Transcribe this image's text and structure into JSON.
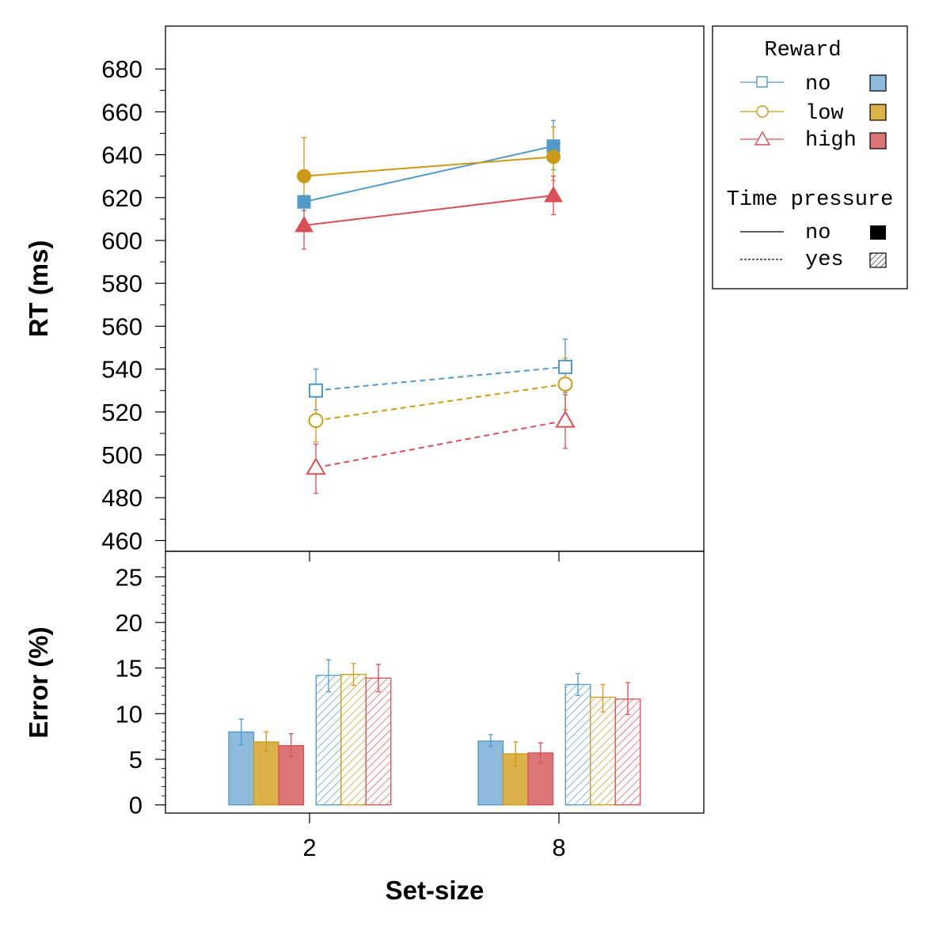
{
  "colors": {
    "no": "#4f9ac8",
    "low": "#cc9a16",
    "high": "#d94f55",
    "no_fill": "#8ebbdc",
    "low_fill": "#dcb149",
    "high_fill": "#dc7575"
  },
  "chart_data": [
    {
      "type": "line",
      "ylabel": "RT (ms)",
      "ylim": [
        455,
        700
      ],
      "yticks": [
        "460",
        "480",
        "500",
        "520",
        "540",
        "560",
        "580",
        "600",
        "620",
        "640",
        "660",
        "680"
      ],
      "categories": [
        "2",
        "8"
      ],
      "series": [
        {
          "name": "no",
          "pressure": "no",
          "values": [
            618,
            644
          ],
          "err": [
            [
              614,
              621
            ],
            [
              633,
              656
            ]
          ]
        },
        {
          "name": "low",
          "pressure": "no",
          "values": [
            630,
            639
          ],
          "err": [
            [
              621,
              648
            ],
            [
              628,
              653
            ]
          ]
        },
        {
          "name": "high",
          "pressure": "no",
          "values": [
            607,
            621
          ],
          "err": [
            [
              596,
              619
            ],
            [
              612,
              630
            ]
          ]
        },
        {
          "name": "no",
          "pressure": "yes",
          "values": [
            530,
            541
          ],
          "err": [
            [
              521,
              540
            ],
            [
              529,
              554
            ]
          ]
        },
        {
          "name": "low",
          "pressure": "yes",
          "values": [
            516,
            533
          ],
          "err": [
            [
              506,
              527
            ],
            [
              521,
              545
            ]
          ]
        },
        {
          "name": "high",
          "pressure": "yes",
          "values": [
            494,
            516
          ],
          "err": [
            [
              482,
              505
            ],
            [
              503,
              528
            ]
          ]
        }
      ]
    },
    {
      "type": "bar",
      "ylabel": "Error (%)",
      "xlabel": "Set-size",
      "ylim": [
        -0.9,
        27.8
      ],
      "yticks": [
        "0",
        "5",
        "10",
        "15",
        "20",
        "25"
      ],
      "categories": [
        "2",
        "8"
      ],
      "series": [
        {
          "name": "no",
          "pressure": "no",
          "values": [
            8.0,
            7.0
          ],
          "err": [
            [
              6.6,
              9.4
            ],
            [
              6.4,
              7.7
            ]
          ]
        },
        {
          "name": "low",
          "pressure": "no",
          "values": [
            6.9,
            5.6
          ],
          "err": [
            [
              5.9,
              8.0
            ],
            [
              4.3,
              6.9
            ]
          ]
        },
        {
          "name": "high",
          "pressure": "no",
          "values": [
            6.5,
            5.7
          ],
          "err": [
            [
              5.3,
              7.8
            ],
            [
              4.6,
              6.8
            ]
          ]
        },
        {
          "name": "no",
          "pressure": "yes",
          "values": [
            14.2,
            13.2
          ],
          "err": [
            [
              12.4,
              15.9
            ],
            [
              12.0,
              14.4
            ]
          ]
        },
        {
          "name": "low",
          "pressure": "yes",
          "values": [
            14.3,
            11.8
          ],
          "err": [
            [
              13.1,
              15.5
            ],
            [
              10.2,
              13.2
            ]
          ]
        },
        {
          "name": "high",
          "pressure": "yes",
          "values": [
            13.9,
            11.6
          ],
          "err": [
            [
              12.4,
              15.4
            ],
            [
              9.9,
              13.4
            ]
          ]
        }
      ]
    }
  ],
  "legend": {
    "reward_title": "Reward",
    "reward_items": [
      "no",
      "low",
      "high"
    ],
    "pressure_title": "Time pressure",
    "pressure_items": [
      "no",
      "yes"
    ]
  }
}
